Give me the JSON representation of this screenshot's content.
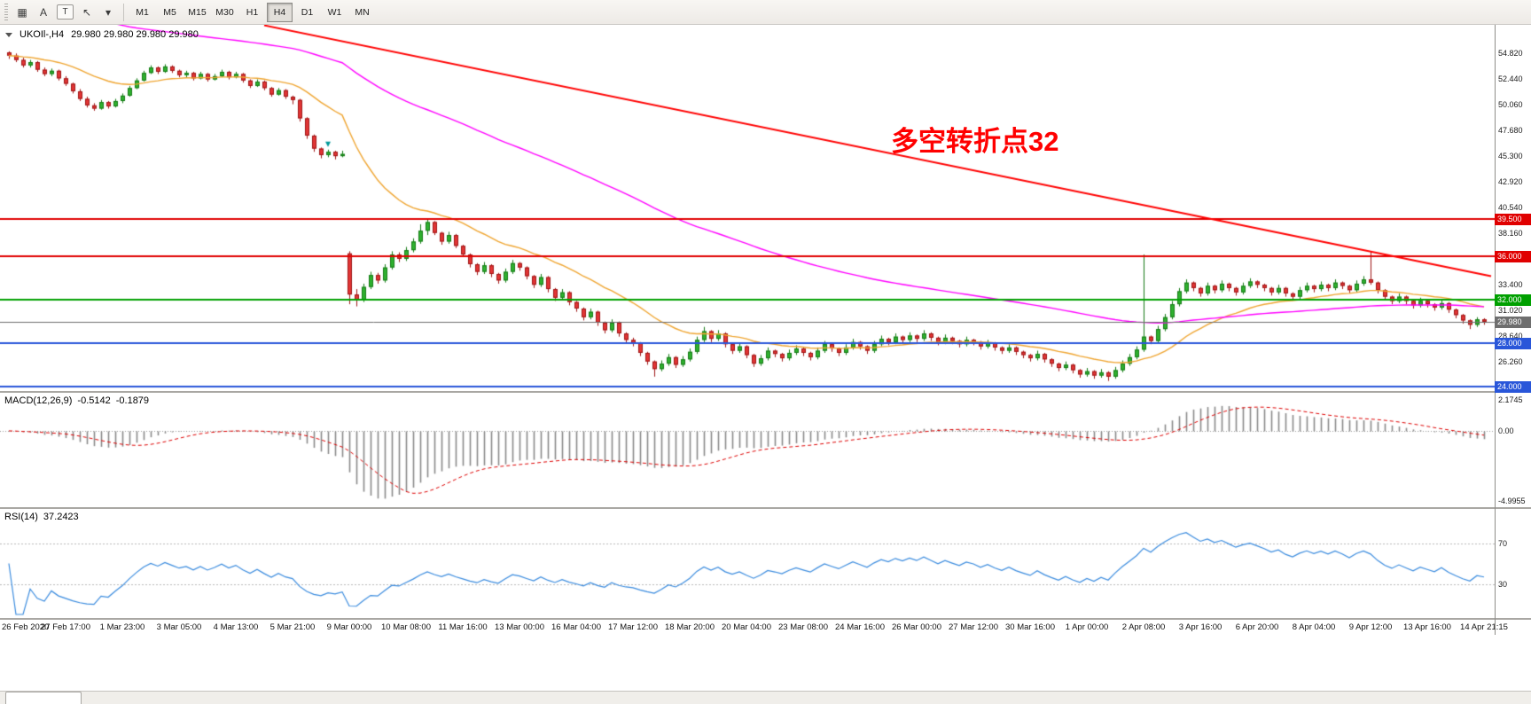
{
  "toolbar": {
    "tool_buttons": [
      {
        "name": "charts-grid-icon",
        "glyph": "▦"
      },
      {
        "name": "text-label-tool-button",
        "glyph": "A"
      },
      {
        "name": "text-tool-button",
        "glyph": "T",
        "boxed": true
      },
      {
        "name": "cursor-tool-icon",
        "glyph": "↖"
      },
      {
        "name": "tools-dropdown-caret-icon",
        "glyph": "▾"
      }
    ],
    "timeframes": [
      "M1",
      "M5",
      "M15",
      "M30",
      "H1",
      "H4",
      "D1",
      "W1",
      "MN"
    ],
    "active_timeframe": "H4"
  },
  "chart_header": {
    "symbol_title": "UKOIl-,H4",
    "ohlc": "29.980 29.980 29.980 29.980"
  },
  "annotation": {
    "text": "多空转折点32",
    "color": "#FF0000"
  },
  "macd_panel": {
    "label": "MACD(12,26,9)",
    "main_value": "-0.5142",
    "signal_value": "-0.1879",
    "axis": [
      {
        "value": 2.1745,
        "label": "2.1745"
      },
      {
        "value": 0,
        "label": "0.00"
      },
      {
        "value": -4.9955,
        "label": "-4.9955"
      }
    ]
  },
  "rsi_panel": {
    "label": "RSI(14)",
    "value": "37.2423",
    "axis": [
      {
        "value": 70,
        "label": "70"
      },
      {
        "value": 30,
        "label": "30"
      }
    ]
  },
  "chart_data": {
    "type": "candlestick",
    "symbol": "UKOIl-",
    "timeframe": "H4",
    "price_range": [
      23.57,
      57.45
    ],
    "axis_ticks": [
      54.82,
      52.44,
      50.06,
      47.68,
      45.3,
      42.92,
      40.54,
      38.16,
      35.78,
      33.4,
      31.02,
      28.64,
      26.26,
      23.88
    ],
    "candle_colors": {
      "up_fill": "#2FB12F",
      "up_edge": "#157A15",
      "down_fill": "#E23535",
      "down_edge": "#9E1515"
    },
    "candles": [
      [
        54.9,
        55.0,
        54.3,
        54.6
      ],
      [
        54.6,
        54.8,
        54.0,
        54.2
      ],
      [
        54.2,
        54.4,
        53.5,
        53.7
      ],
      [
        53.7,
        54.2,
        53.5,
        54.0
      ],
      [
        54.0,
        54.1,
        53.1,
        53.3
      ],
      [
        53.3,
        53.5,
        52.7,
        52.9
      ],
      [
        52.9,
        53.4,
        52.7,
        53.2
      ],
      [
        53.2,
        53.3,
        52.3,
        52.5
      ],
      [
        52.5,
        52.7,
        51.8,
        52.0
      ],
      [
        52.0,
        52.1,
        51.1,
        51.3
      ],
      [
        51.3,
        51.5,
        50.4,
        50.6
      ],
      [
        50.6,
        50.8,
        49.8,
        50.0
      ],
      [
        50.0,
        50.2,
        49.5,
        49.7
      ],
      [
        49.7,
        50.5,
        49.6,
        50.3
      ],
      [
        50.3,
        50.4,
        49.7,
        49.9
      ],
      [
        49.9,
        50.6,
        49.8,
        50.4
      ],
      [
        50.4,
        51.1,
        50.2,
        50.9
      ],
      [
        50.9,
        51.8,
        50.8,
        51.6
      ],
      [
        51.6,
        52.5,
        51.5,
        52.3
      ],
      [
        52.3,
        53.2,
        52.2,
        53.0
      ],
      [
        53.0,
        53.7,
        52.9,
        53.5
      ],
      [
        53.5,
        53.6,
        52.9,
        53.1
      ],
      [
        53.1,
        53.8,
        53.0,
        53.6
      ],
      [
        53.6,
        53.7,
        53.0,
        53.2
      ],
      [
        53.2,
        53.3,
        52.6,
        52.8
      ],
      [
        52.8,
        53.2,
        52.6,
        53.0
      ],
      [
        53.0,
        53.1,
        52.3,
        52.5
      ],
      [
        52.5,
        53.1,
        52.4,
        52.9
      ],
      [
        52.9,
        53.0,
        52.2,
        52.4
      ],
      [
        52.4,
        52.9,
        52.3,
        52.7
      ],
      [
        52.7,
        53.3,
        52.6,
        53.1
      ],
      [
        53.1,
        53.2,
        52.4,
        52.6
      ],
      [
        52.6,
        53.1,
        52.5,
        52.9
      ],
      [
        52.9,
        53.0,
        52.1,
        52.3
      ],
      [
        52.3,
        52.4,
        51.6,
        51.8
      ],
      [
        51.8,
        52.4,
        51.7,
        52.2
      ],
      [
        52.2,
        52.3,
        51.4,
        51.6
      ],
      [
        51.6,
        51.7,
        50.8,
        51.0
      ],
      [
        51.0,
        51.6,
        50.9,
        51.4
      ],
      [
        51.4,
        51.5,
        50.6,
        50.8
      ],
      [
        50.8,
        50.9,
        50.1,
        50.5
      ],
      [
        50.5,
        50.6,
        48.5,
        48.8
      ],
      [
        48.8,
        48.9,
        46.9,
        47.2
      ],
      [
        47.2,
        47.3,
        45.7,
        46.0
      ],
      [
        46.0,
        46.1,
        45.1,
        45.4
      ],
      [
        45.4,
        45.9,
        45.2,
        45.7
      ],
      [
        45.7,
        45.8,
        45.0,
        45.3
      ],
      [
        45.3,
        45.8,
        45.2,
        45.5
      ],
      [
        36.3,
        36.5,
        31.6,
        32.5
      ],
      [
        32.5,
        33.0,
        31.4,
        32.0
      ],
      [
        32.0,
        33.5,
        31.8,
        33.2
      ],
      [
        33.2,
        34.6,
        33.0,
        34.3
      ],
      [
        34.3,
        34.5,
        33.5,
        33.8
      ],
      [
        33.8,
        35.3,
        33.6,
        35.0
      ],
      [
        35.0,
        36.5,
        34.8,
        36.2
      ],
      [
        36.2,
        36.4,
        35.5,
        35.8
      ],
      [
        35.8,
        36.9,
        35.6,
        36.6
      ],
      [
        36.6,
        37.7,
        36.4,
        37.4
      ],
      [
        37.4,
        39.0,
        37.2,
        38.4
      ],
      [
        38.4,
        39.5,
        38.0,
        39.2
      ],
      [
        39.2,
        39.3,
        38.0,
        38.2
      ],
      [
        38.2,
        38.3,
        37.1,
        37.4
      ],
      [
        37.4,
        38.3,
        37.2,
        38.0
      ],
      [
        38.0,
        38.1,
        36.8,
        37.0
      ],
      [
        37.0,
        37.1,
        36.0,
        36.2
      ],
      [
        36.2,
        36.3,
        35.0,
        35.3
      ],
      [
        35.3,
        35.4,
        34.3,
        34.6
      ],
      [
        34.6,
        35.5,
        34.4,
        35.2
      ],
      [
        35.2,
        35.3,
        34.1,
        34.4
      ],
      [
        34.4,
        34.5,
        33.5,
        33.8
      ],
      [
        33.8,
        34.9,
        33.6,
        34.6
      ],
      [
        34.6,
        35.7,
        34.4,
        35.4
      ],
      [
        35.4,
        35.5,
        34.7,
        35.0
      ],
      [
        35.0,
        35.1,
        33.9,
        34.2
      ],
      [
        34.2,
        34.3,
        33.1,
        33.4
      ],
      [
        33.4,
        34.4,
        33.2,
        34.1
      ],
      [
        34.1,
        34.2,
        32.7,
        33.0
      ],
      [
        33.0,
        33.1,
        31.9,
        32.2
      ],
      [
        32.2,
        33.0,
        32.0,
        32.7
      ],
      [
        32.7,
        32.8,
        31.5,
        31.8
      ],
      [
        31.8,
        31.9,
        30.9,
        31.2
      ],
      [
        31.2,
        31.3,
        30.1,
        30.4
      ],
      [
        30.4,
        31.2,
        30.2,
        30.9
      ],
      [
        30.9,
        31.0,
        29.6,
        29.9
      ],
      [
        29.9,
        30.0,
        28.9,
        29.2
      ],
      [
        29.2,
        30.2,
        29.0,
        29.9
      ],
      [
        29.9,
        30.0,
        28.6,
        28.9
      ],
      [
        28.9,
        29.0,
        28.0,
        28.3
      ],
      [
        28.3,
        28.5,
        27.7,
        28.0
      ],
      [
        28.0,
        28.1,
        26.8,
        27.1
      ],
      [
        27.1,
        27.2,
        26.0,
        26.3
      ],
      [
        26.3,
        26.4,
        24.9,
        25.6
      ],
      [
        25.6,
        26.4,
        25.4,
        26.1
      ],
      [
        26.1,
        27.0,
        25.9,
        26.7
      ],
      [
        26.7,
        26.8,
        25.7,
        26.0
      ],
      [
        26.0,
        26.8,
        25.8,
        26.5
      ],
      [
        26.5,
        27.5,
        26.3,
        27.2
      ],
      [
        27.2,
        28.6,
        27.0,
        28.3
      ],
      [
        28.3,
        29.5,
        28.1,
        29.1
      ],
      [
        29.1,
        29.2,
        28.1,
        28.4
      ],
      [
        28.4,
        29.2,
        28.2,
        28.9
      ],
      [
        28.9,
        29.0,
        27.6,
        27.9
      ],
      [
        27.9,
        28.0,
        27.0,
        27.3
      ],
      [
        27.3,
        28.0,
        27.1,
        27.7
      ],
      [
        27.7,
        27.8,
        26.6,
        26.9
      ],
      [
        26.9,
        27.0,
        25.8,
        26.1
      ],
      [
        26.1,
        26.9,
        25.9,
        26.6
      ],
      [
        26.6,
        27.6,
        26.4,
        27.3
      ],
      [
        27.3,
        27.4,
        26.7,
        27.0
      ],
      [
        27.0,
        27.1,
        26.3,
        26.6
      ],
      [
        26.6,
        27.4,
        26.4,
        27.1
      ],
      [
        27.1,
        27.8,
        26.9,
        27.5
      ],
      [
        27.5,
        27.6,
        26.8,
        27.1
      ],
      [
        27.1,
        27.2,
        26.4,
        26.7
      ],
      [
        26.7,
        27.6,
        26.5,
        27.3
      ],
      [
        27.3,
        28.2,
        27.1,
        27.9
      ],
      [
        27.9,
        28.0,
        27.2,
        27.5
      ],
      [
        27.5,
        27.6,
        26.8,
        27.1
      ],
      [
        27.1,
        27.9,
        26.9,
        27.6
      ],
      [
        27.6,
        28.4,
        27.4,
        28.1
      ],
      [
        28.1,
        28.2,
        27.4,
        27.7
      ],
      [
        27.7,
        27.8,
        27.0,
        27.3
      ],
      [
        27.3,
        28.2,
        27.1,
        27.9
      ],
      [
        27.9,
        28.7,
        27.7,
        28.4
      ],
      [
        28.4,
        28.5,
        27.8,
        28.1
      ],
      [
        28.1,
        28.9,
        27.9,
        28.6
      ],
      [
        28.6,
        28.7,
        28.0,
        28.3
      ],
      [
        28.3,
        29.0,
        28.1,
        28.7
      ],
      [
        28.7,
        28.8,
        28.1,
        28.4
      ],
      [
        28.4,
        29.2,
        28.2,
        28.9
      ],
      [
        28.9,
        29.0,
        28.2,
        28.5
      ],
      [
        28.5,
        28.6,
        27.8,
        28.1
      ],
      [
        28.1,
        28.8,
        27.9,
        28.5
      ],
      [
        28.5,
        28.6,
        27.9,
        28.2
      ],
      [
        28.2,
        28.3,
        27.6,
        27.9
      ],
      [
        27.9,
        28.6,
        27.7,
        28.3
      ],
      [
        28.3,
        28.4,
        27.8,
        28.1
      ],
      [
        28.1,
        28.2,
        27.4,
        27.7
      ],
      [
        27.7,
        28.3,
        27.5,
        28.0
      ],
      [
        28.0,
        28.1,
        27.3,
        27.6
      ],
      [
        27.6,
        27.7,
        27.0,
        27.3
      ],
      [
        27.3,
        27.9,
        27.1,
        27.6
      ],
      [
        27.6,
        27.7,
        26.9,
        27.2
      ],
      [
        27.2,
        27.3,
        26.6,
        26.9
      ],
      [
        26.9,
        27.0,
        26.3,
        26.6
      ],
      [
        26.6,
        27.3,
        26.4,
        27.0
      ],
      [
        27.0,
        27.1,
        26.2,
        26.5
      ],
      [
        26.5,
        26.6,
        25.8,
        26.1
      ],
      [
        26.1,
        26.2,
        25.4,
        25.7
      ],
      [
        25.7,
        26.3,
        25.5,
        26.0
      ],
      [
        26.0,
        26.1,
        25.2,
        25.5
      ],
      [
        25.5,
        25.6,
        24.8,
        25.1
      ],
      [
        25.1,
        25.7,
        24.9,
        25.4
      ],
      [
        25.4,
        25.5,
        24.7,
        25.0
      ],
      [
        25.0,
        25.6,
        24.8,
        25.3
      ],
      [
        25.3,
        25.4,
        24.5,
        24.9
      ],
      [
        24.9,
        25.8,
        24.7,
        25.5
      ],
      [
        25.5,
        26.4,
        25.3,
        26.1
      ],
      [
        26.1,
        27.0,
        25.9,
        26.7
      ],
      [
        26.7,
        27.7,
        26.5,
        27.4
      ],
      [
        27.4,
        36.2,
        27.2,
        28.6
      ],
      [
        28.6,
        28.7,
        27.9,
        28.2
      ],
      [
        28.2,
        29.6,
        28.0,
        29.3
      ],
      [
        29.3,
        30.7,
        29.1,
        30.4
      ],
      [
        30.4,
        31.9,
        30.2,
        31.6
      ],
      [
        31.6,
        33.1,
        31.4,
        32.8
      ],
      [
        32.8,
        33.9,
        32.6,
        33.6
      ],
      [
        33.6,
        33.7,
        32.8,
        33.1
      ],
      [
        33.1,
        33.2,
        32.3,
        32.6
      ],
      [
        32.6,
        33.6,
        32.4,
        33.3
      ],
      [
        33.3,
        33.4,
        32.6,
        32.9
      ],
      [
        32.9,
        33.8,
        32.7,
        33.5
      ],
      [
        33.5,
        33.6,
        32.8,
        33.1
      ],
      [
        33.1,
        33.2,
        32.4,
        32.7
      ],
      [
        32.7,
        33.6,
        32.5,
        33.3
      ],
      [
        33.3,
        34.0,
        33.1,
        33.7
      ],
      [
        33.7,
        33.8,
        33.1,
        33.4
      ],
      [
        33.4,
        33.5,
        32.8,
        33.1
      ],
      [
        33.1,
        33.2,
        32.4,
        32.7
      ],
      [
        32.7,
        33.4,
        32.5,
        33.1
      ],
      [
        33.1,
        33.2,
        32.3,
        32.6
      ],
      [
        32.6,
        32.7,
        32.0,
        32.3
      ],
      [
        32.3,
        33.2,
        32.1,
        32.9
      ],
      [
        32.9,
        33.6,
        32.7,
        33.3
      ],
      [
        33.3,
        33.4,
        32.7,
        33.0
      ],
      [
        33.0,
        33.7,
        32.8,
        33.4
      ],
      [
        33.4,
        33.5,
        32.8,
        33.1
      ],
      [
        33.1,
        33.9,
        32.9,
        33.6
      ],
      [
        33.6,
        33.7,
        33.0,
        33.3
      ],
      [
        33.3,
        33.4,
        32.6,
        32.9
      ],
      [
        32.9,
        33.8,
        32.7,
        33.5
      ],
      [
        33.5,
        34.2,
        33.3,
        33.9
      ],
      [
        33.9,
        36.5,
        33.4,
        33.6
      ],
      [
        33.6,
        33.7,
        32.6,
        32.9
      ],
      [
        32.9,
        33.0,
        32.0,
        32.3
      ],
      [
        32.3,
        32.4,
        31.6,
        31.9
      ],
      [
        31.9,
        32.6,
        31.7,
        32.3
      ],
      [
        32.3,
        32.4,
        31.6,
        31.9
      ],
      [
        31.9,
        32.0,
        31.2,
        31.5
      ],
      [
        31.5,
        32.2,
        31.3,
        31.9
      ],
      [
        31.9,
        32.0,
        31.3,
        31.6
      ],
      [
        31.6,
        31.7,
        31.0,
        31.3
      ],
      [
        31.3,
        32.0,
        31.1,
        31.7
      ],
      [
        31.7,
        31.8,
        30.8,
        31.1
      ],
      [
        31.1,
        31.2,
        30.3,
        30.6
      ],
      [
        30.6,
        30.7,
        29.8,
        30.1
      ],
      [
        30.1,
        30.2,
        29.3,
        29.7
      ],
      [
        29.7,
        30.4,
        29.5,
        30.2
      ],
      [
        30.2,
        30.3,
        29.7,
        29.98
      ]
    ],
    "moving_averages": [
      {
        "type": "ema",
        "period": 21,
        "seed": null,
        "color": "#EFA531"
      },
      {
        "type": "ema",
        "period": 89,
        "seed": 60,
        "color": "#FF00FF"
      }
    ],
    "trendline": {
      "from_bar": 36,
      "from_price": 57.4,
      "to_bar": 209,
      "to_price": 34.2,
      "color": "#FF0000",
      "width": 2
    },
    "hlines": [
      {
        "price": 39.5,
        "label": "39.500",
        "color": "#E00000",
        "width": 2
      },
      {
        "price": 36.0,
        "label": "36.000",
        "color": "#E00000",
        "width": 2
      },
      {
        "price": 32.0,
        "label": "32.000",
        "color": "#00A000",
        "width": 2
      },
      {
        "price": 29.98,
        "label": "29.980",
        "color": "#6E6E6E",
        "width": 1
      },
      {
        "price": 28.0,
        "label": "28.000",
        "color": "#2956D9",
        "width": 2
      },
      {
        "price": 24.0,
        "label": "24.000",
        "color": "#2956D9",
        "width": 2
      }
    ],
    "marker": {
      "bar": 45,
      "price": 46.4,
      "glyph": "▾",
      "color": "#009999"
    },
    "macd": {
      "fast": 12,
      "slow": 26,
      "signal": 9,
      "range": [
        -5.41,
        2.7
      ],
      "hist_color": "#8A8A8A",
      "signal_color": "#DD0000"
    },
    "rsi": {
      "period": 14,
      "levels": [
        70,
        30
      ],
      "color": "#3A8BDE"
    },
    "time_labels": [
      "26 Feb 2020",
      "27 Feb 17:00",
      "1 Mar 23:00",
      "3 Mar 05:00",
      "4 Mar 13:00",
      "5 Mar 21:00",
      "9 Mar 00:00",
      "10 Mar 08:00",
      "11 Mar 16:00",
      "13 Mar 00:00",
      "16 Mar 04:00",
      "17 Mar 12:00",
      "18 Mar 20:00",
      "20 Mar 04:00",
      "23 Mar 08:00",
      "24 Mar 16:00",
      "26 Mar 00:00",
      "27 Mar 12:00",
      "30 Mar 16:00",
      "1 Apr 00:00",
      "2 Apr 08:00",
      "3 Apr 16:00",
      "6 Apr 20:00",
      "8 Apr 04:00",
      "9 Apr 12:00",
      "13 Apr 16:00",
      "14 Apr 21:15"
    ]
  }
}
